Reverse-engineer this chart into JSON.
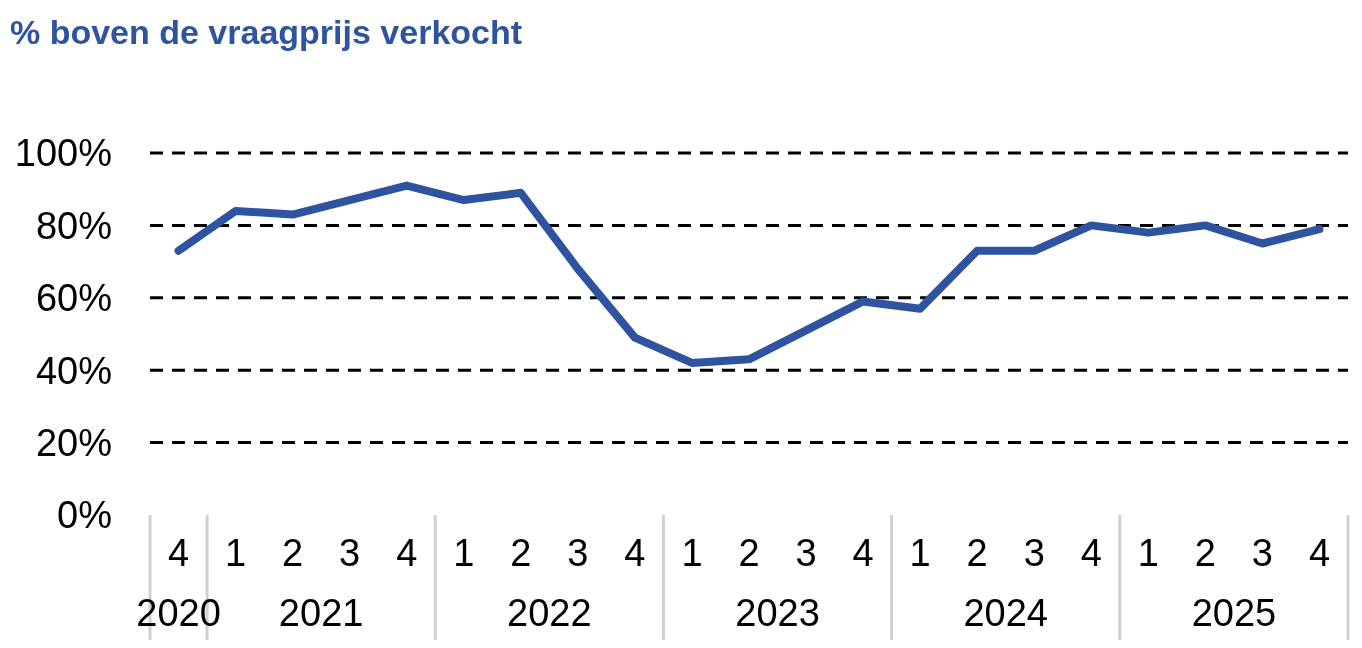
{
  "chart_data": {
    "type": "line",
    "title": "% boven de vraagprijs verkocht",
    "categories": [
      "4",
      "1",
      "2",
      "3",
      "4",
      "1",
      "2",
      "3",
      "4",
      "1",
      "2",
      "3",
      "4",
      "1",
      "2",
      "3",
      "4",
      "1",
      "2",
      "3",
      "4"
    ],
    "annotations": [
      "2020",
      "2021",
      "2022",
      "2023",
      "2024",
      "2025"
    ],
    "series": [
      {
        "color": "#2e54a0",
        "values": [
          73,
          84,
          83,
          87,
          91,
          87,
          89,
          68,
          49,
          42,
          43,
          51,
          59,
          57,
          73,
          73,
          80,
          78,
          80,
          75,
          79
        ]
      }
    ],
    "ylim": [
      0,
      100
    ],
    "yticks": [
      {
        "value": 0,
        "label": "0%"
      },
      {
        "value": 20,
        "label": "20%"
      },
      {
        "value": 40,
        "label": "40%"
      },
      {
        "value": 60,
        "label": "60%"
      },
      {
        "value": 80,
        "label": "80%"
      },
      {
        "value": 100,
        "label": "100%"
      }
    ],
    "grid": "y",
    "line_style": "solid",
    "marker": "none"
  }
}
